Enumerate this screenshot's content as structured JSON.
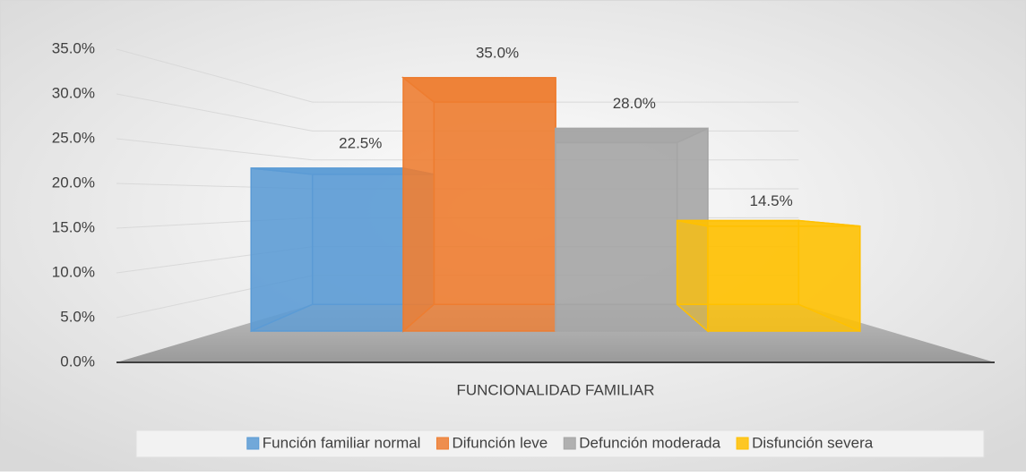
{
  "chart_data": {
    "type": "bar3d",
    "categories": [
      "FUNCIONALIDAD FAMILIAR"
    ],
    "series": [
      {
        "name": "Función familiar normal",
        "color": "#5b9bd5",
        "values": [
          22.5
        ],
        "value_labels": [
          "22.5%"
        ]
      },
      {
        "name": "Difunción leve",
        "color": "#ed7d31",
        "values": [
          35.0
        ],
        "value_labels": [
          "35.0%"
        ]
      },
      {
        "name": "Defunción moderada",
        "color": "#a5a5a5",
        "values": [
          28.0
        ],
        "value_labels": [
          "28.0%"
        ]
      },
      {
        "name": "Disfunción severa",
        "color": "#ffc000",
        "values": [
          14.5
        ],
        "value_labels": [
          "14.5%"
        ]
      }
    ],
    "ylim": [
      0,
      35
    ],
    "yticks": [
      {
        "value": 0,
        "label": "0.0%"
      },
      {
        "value": 5,
        "label": "5.0%"
      },
      {
        "value": 10,
        "label": "10.0%"
      },
      {
        "value": 15,
        "label": "15.0%"
      },
      {
        "value": 20,
        "label": "20.0%"
      },
      {
        "value": 25,
        "label": "25.0%"
      },
      {
        "value": 30,
        "label": "30.0%"
      },
      {
        "value": 35,
        "label": "35.0%"
      }
    ],
    "grid": true,
    "legend": "bottom"
  }
}
